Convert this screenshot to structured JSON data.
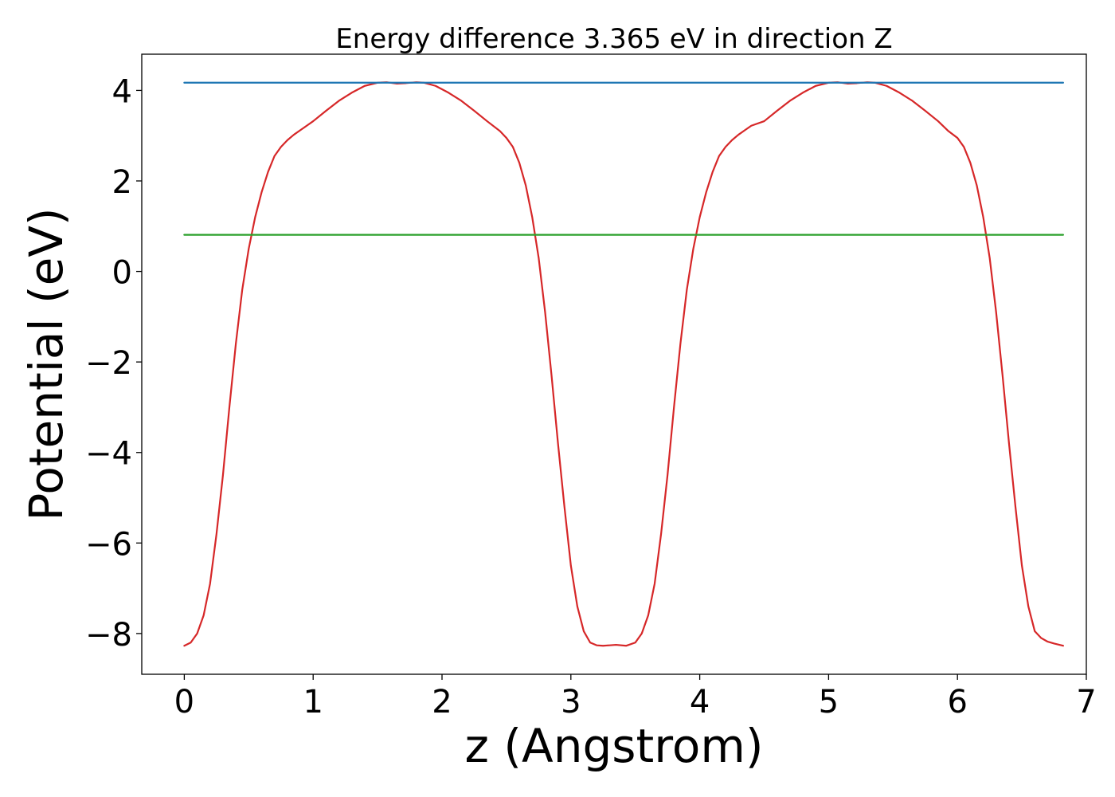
{
  "chart_data": {
    "type": "line",
    "title": "Energy difference 3.365 eV in direction Z",
    "xlabel": "z (Angstrom)",
    "ylabel": "Potential (eV)",
    "xlim": [
      -0.33,
      7.0
    ],
    "ylim": [
      -8.9,
      4.8
    ],
    "xticks": [
      0,
      1,
      2,
      3,
      4,
      5,
      6,
      7
    ],
    "xtick_labels": [
      "0",
      "1",
      "2",
      "3",
      "4",
      "5",
      "6",
      "7"
    ],
    "yticks": [
      4,
      2,
      0,
      -2,
      -4,
      -6,
      -8
    ],
    "ytick_labels": [
      "4",
      "2",
      "0",
      "−2",
      "−4",
      "−6",
      "−8"
    ],
    "grid": false,
    "series": [
      {
        "color": "#d62728",
        "x": [
          0.0,
          0.05,
          0.1,
          0.15,
          0.2,
          0.25,
          0.3,
          0.35,
          0.4,
          0.45,
          0.5,
          0.55,
          0.6,
          0.65,
          0.7,
          0.75,
          0.8,
          0.85,
          0.9,
          0.95,
          1.0,
          1.1,
          1.2,
          1.3,
          1.4,
          1.5,
          1.57,
          1.65,
          1.72,
          1.8,
          1.86,
          1.95,
          2.05,
          2.15,
          2.25,
          2.35,
          2.45,
          2.5,
          2.55,
          2.6,
          2.65,
          2.7,
          2.75,
          2.8,
          2.85,
          2.9,
          2.95,
          3.0,
          3.05,
          3.1,
          3.15,
          3.2,
          3.25,
          3.3,
          3.35,
          3.43,
          3.5,
          3.55,
          3.6,
          3.65,
          3.7,
          3.75,
          3.8,
          3.85,
          3.9,
          3.95,
          4.0,
          4.05,
          4.1,
          4.15,
          4.2,
          4.25,
          4.3,
          4.35,
          4.4,
          4.5,
          4.6,
          4.7,
          4.8,
          4.9,
          5.0,
          5.07,
          5.15,
          5.22,
          5.3,
          5.36,
          5.45,
          5.55,
          5.65,
          5.75,
          5.85,
          5.93,
          6.0,
          6.05,
          6.1,
          6.15,
          6.2,
          6.25,
          6.3,
          6.35,
          6.4,
          6.45,
          6.5,
          6.55,
          6.6,
          6.65,
          6.7,
          6.75,
          6.82
        ],
        "y": [
          -8.27,
          -8.2,
          -8.0,
          -7.6,
          -6.9,
          -5.8,
          -4.5,
          -3.0,
          -1.6,
          -0.4,
          0.5,
          1.2,
          1.75,
          2.2,
          2.55,
          2.75,
          2.9,
          3.02,
          3.12,
          3.22,
          3.32,
          3.55,
          3.77,
          3.95,
          4.1,
          4.17,
          4.18,
          4.15,
          4.16,
          4.18,
          4.17,
          4.1,
          3.95,
          3.77,
          3.55,
          3.32,
          3.1,
          2.95,
          2.75,
          2.4,
          1.9,
          1.2,
          0.3,
          -0.9,
          -2.3,
          -3.8,
          -5.2,
          -6.5,
          -7.4,
          -7.95,
          -8.2,
          -8.26,
          -8.27,
          -8.26,
          -8.25,
          -8.27,
          -8.2,
          -8.0,
          -7.6,
          -6.9,
          -5.8,
          -4.5,
          -3.0,
          -1.6,
          -0.4,
          0.5,
          1.2,
          1.75,
          2.2,
          2.55,
          2.75,
          2.9,
          3.02,
          3.12,
          3.22,
          3.32,
          3.55,
          3.77,
          3.95,
          4.1,
          4.17,
          4.18,
          4.15,
          4.16,
          4.18,
          4.17,
          4.1,
          3.95,
          3.77,
          3.55,
          3.32,
          3.1,
          2.95,
          2.75,
          2.4,
          1.9,
          1.2,
          0.3,
          -0.9,
          -2.3,
          -3.8,
          -5.2,
          -6.5,
          -7.4,
          -7.95,
          -8.1,
          -8.18,
          -8.22,
          -8.27
        ]
      },
      {
        "color": "#1f77b4",
        "x": [
          0.0,
          6.82
        ],
        "y": [
          4.17,
          4.17
        ]
      },
      {
        "color": "#2ca02c",
        "x": [
          0.0,
          6.82
        ],
        "y": [
          0.81,
          0.81
        ]
      }
    ]
  }
}
